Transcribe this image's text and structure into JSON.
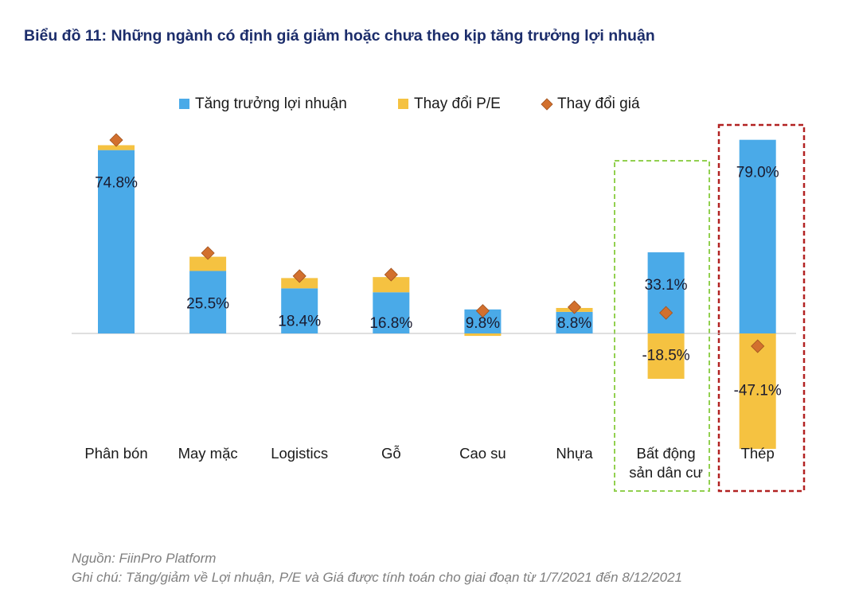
{
  "chart_data": {
    "type": "bar",
    "title": "Biểu đồ 11: Những ngành có định giá giảm hoặc chưa theo kịp tăng trưởng lợi nhuận",
    "categories": [
      "Phân bón",
      "May mặc",
      "Logistics",
      "Gỗ",
      "Cao su",
      "Nhựa",
      "Bất động sản dân cư",
      "Thép"
    ],
    "series": [
      {
        "name": "Tăng trưởng lợi nhuận",
        "color": "#4aaae8",
        "values": [
          74.8,
          25.5,
          18.4,
          16.8,
          9.8,
          8.8,
          33.1,
          79.0
        ],
        "value_labels": [
          "74.8%",
          "25.5%",
          "18.4%",
          "16.8%",
          "9.8%",
          "8.8%",
          "33.1%",
          "79.0%"
        ]
      },
      {
        "name": "Thay đổi P/E",
        "color": "#f5c241",
        "values": [
          2.0,
          5.8,
          4.2,
          6.2,
          -1.0,
          1.6,
          -18.5,
          -47.1
        ],
        "value_labels": [
          null,
          null,
          null,
          null,
          null,
          null,
          "-18.5%",
          "-47.1%"
        ]
      },
      {
        "name": "Thay đổi giá",
        "color": "#d2702e",
        "marker": "diamond",
        "values": [
          78.9,
          32.8,
          23.4,
          24.0,
          9.2,
          10.7,
          8.4,
          -5.2
        ]
      }
    ],
    "notes": [
      "Nguồn: FiinPro Platform",
      "Ghi chú: Tăng/giảm về Lợi nhuận, P/E và Giá được tính toán cho giai đoạn từ 1/7/2021 đến 8/12/2021"
    ]
  }
}
